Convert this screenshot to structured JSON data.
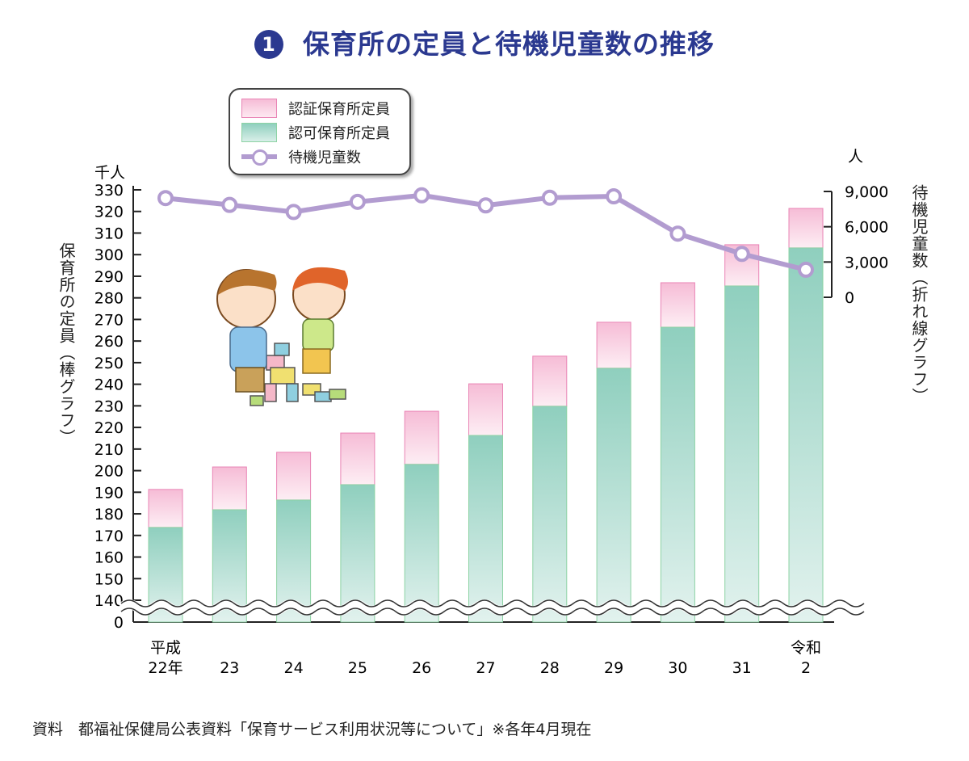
{
  "title": {
    "number": "1",
    "text": "保育所の定員と待機児童数の推移"
  },
  "source": "資料　都福祉保健局公表資料「保育サービス利用状況等について」※各年4月現在",
  "chart_data": {
    "type": "bar+line",
    "categories": [
      "平成\n22年",
      "23",
      "24",
      "25",
      "26",
      "27",
      "28",
      "29",
      "30",
      "31",
      "令和\n2"
    ],
    "series": [
      {
        "name": "認可保育所定員",
        "type": "stacked-bar",
        "axis": "left",
        "color": "#8fcfbe",
        "values": [
          173.7,
          181.9,
          186.4,
          193.5,
          202.9,
          216.3,
          229.8,
          247.4,
          266.4,
          285.5,
          303.1
        ]
      },
      {
        "name": "認証保育所定員",
        "type": "stacked-bar",
        "axis": "left",
        "color": "#f6bcd6",
        "values": [
          17.6,
          19.8,
          22.1,
          23.9,
          24.6,
          23.9,
          23.2,
          21.3,
          20.6,
          19.1,
          18.3
        ]
      },
      {
        "name": "待機児童数",
        "type": "line",
        "axis": "right",
        "color": "#b29cd0",
        "values": [
          8435,
          7855,
          7257,
          8117,
          8672,
          7814,
          8466,
          8586,
          5414,
          3690,
          2343
        ]
      }
    ],
    "left_axis": {
      "unit": "千人",
      "label": "保育所の定員（棒グラフ）",
      "ylim": [
        140,
        330
      ],
      "ticks": [
        0,
        140,
        150,
        160,
        170,
        180,
        190,
        200,
        210,
        220,
        230,
        240,
        250,
        260,
        270,
        280,
        290,
        300,
        310,
        320,
        330
      ],
      "broken": true
    },
    "right_axis": {
      "unit": "人",
      "label": "待機児童数（折れ線グラフ）",
      "ylim": [
        0,
        9000
      ],
      "ticks": [
        "0",
        "3,000",
        "6,000",
        "9,000"
      ]
    },
    "legend": {
      "placement": "top-left",
      "entries": [
        "認証保育所定員",
        "認可保育所定員",
        "待機児童数"
      ]
    },
    "grid": false
  }
}
